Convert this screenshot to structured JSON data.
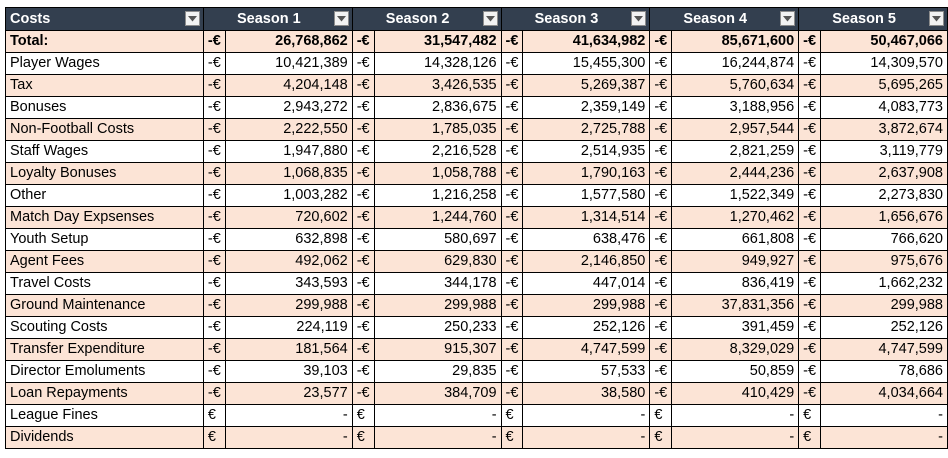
{
  "sheet": {
    "header": {
      "label": "Costs",
      "seasons": [
        "Season 1",
        "Season 2",
        "Season 3",
        "Season 4",
        "Season 5"
      ],
      "filter_icon": "dropdown-arrow-icon"
    },
    "rows": [
      {
        "label": "Total:",
        "cells": [
          [
            "-€",
            "26,768,862"
          ],
          [
            "-€",
            "31,547,482"
          ],
          [
            "-€",
            "41,634,982"
          ],
          [
            "-€",
            "85,671,600"
          ],
          [
            "-€",
            "50,467,066"
          ]
        ]
      },
      {
        "label": "Player Wages",
        "cells": [
          [
            "-€",
            "10,421,389"
          ],
          [
            "-€",
            "14,328,126"
          ],
          [
            "-€",
            "15,455,300"
          ],
          [
            "-€",
            "16,244,874"
          ],
          [
            "-€",
            "14,309,570"
          ]
        ]
      },
      {
        "label": "Tax",
        "cells": [
          [
            "-€",
            "4,204,148"
          ],
          [
            "-€",
            "3,426,535"
          ],
          [
            "-€",
            "5,269,387"
          ],
          [
            "-€",
            "5,760,634"
          ],
          [
            "-€",
            "5,695,265"
          ]
        ]
      },
      {
        "label": "Bonuses",
        "cells": [
          [
            "-€",
            "2,943,272"
          ],
          [
            "-€",
            "2,836,675"
          ],
          [
            "-€",
            "2,359,149"
          ],
          [
            "-€",
            "3,188,956"
          ],
          [
            "-€",
            "4,083,773"
          ]
        ]
      },
      {
        "label": "Non-Football Costs",
        "cells": [
          [
            "-€",
            "2,222,550"
          ],
          [
            "-€",
            "1,785,035"
          ],
          [
            "-€",
            "2,725,788"
          ],
          [
            "-€",
            "2,957,544"
          ],
          [
            "-€",
            "3,872,674"
          ]
        ]
      },
      {
        "label": "Staff Wages",
        "cells": [
          [
            "-€",
            "1,947,880"
          ],
          [
            "-€",
            "2,216,528"
          ],
          [
            "-€",
            "2,514,935"
          ],
          [
            "-€",
            "2,821,259"
          ],
          [
            "-€",
            "3,119,779"
          ]
        ]
      },
      {
        "label": "Loyalty Bonuses",
        "cells": [
          [
            "-€",
            "1,068,835"
          ],
          [
            "-€",
            "1,058,788"
          ],
          [
            "-€",
            "1,790,163"
          ],
          [
            "-€",
            "2,444,236"
          ],
          [
            "-€",
            "2,637,908"
          ]
        ]
      },
      {
        "label": "Other",
        "cells": [
          [
            "-€",
            "1,003,282"
          ],
          [
            "-€",
            "1,216,258"
          ],
          [
            "-€",
            "1,577,580"
          ],
          [
            "-€",
            "1,522,349"
          ],
          [
            "-€",
            "2,273,830"
          ]
        ]
      },
      {
        "label": "Match Day Expsenses",
        "cells": [
          [
            "-€",
            "720,602"
          ],
          [
            "-€",
            "1,244,760"
          ],
          [
            "-€",
            "1,314,514"
          ],
          [
            "-€",
            "1,270,462"
          ],
          [
            "-€",
            "1,656,676"
          ]
        ]
      },
      {
        "label": "Youth Setup",
        "cells": [
          [
            "-€",
            "632,898"
          ],
          [
            "-€",
            "580,697"
          ],
          [
            "-€",
            "638,476"
          ],
          [
            "-€",
            "661,808"
          ],
          [
            "-€",
            "766,620"
          ]
        ]
      },
      {
        "label": "Agent Fees",
        "cells": [
          [
            "-€",
            "492,062"
          ],
          [
            "-€",
            "629,830"
          ],
          [
            "-€",
            "2,146,850"
          ],
          [
            "-€",
            "949,927"
          ],
          [
            "-€",
            "975,676"
          ]
        ]
      },
      {
        "label": "Travel Costs",
        "cells": [
          [
            "-€",
            "343,593"
          ],
          [
            "-€",
            "344,178"
          ],
          [
            "-€",
            "447,014"
          ],
          [
            "-€",
            "836,419"
          ],
          [
            "-€",
            "1,662,232"
          ]
        ]
      },
      {
        "label": "Ground Maintenance",
        "cells": [
          [
            "-€",
            "299,988"
          ],
          [
            "-€",
            "299,988"
          ],
          [
            "-€",
            "299,988"
          ],
          [
            "-€",
            "37,831,356"
          ],
          [
            "-€",
            "299,988"
          ]
        ]
      },
      {
        "label": "Scouting Costs",
        "cells": [
          [
            "-€",
            "224,119"
          ],
          [
            "-€",
            "250,233"
          ],
          [
            "-€",
            "252,126"
          ],
          [
            "-€",
            "391,459"
          ],
          [
            "-€",
            "252,126"
          ]
        ]
      },
      {
        "label": "Transfer Expenditure",
        "cells": [
          [
            "-€",
            "181,564"
          ],
          [
            "-€",
            "915,307"
          ],
          [
            "-€",
            "4,747,599"
          ],
          [
            "-€",
            "8,329,029"
          ],
          [
            "-€",
            "4,747,599"
          ]
        ]
      },
      {
        "label": "Director Emoluments",
        "cells": [
          [
            "-€",
            "39,103"
          ],
          [
            "-€",
            "29,835"
          ],
          [
            "-€",
            "57,533"
          ],
          [
            "-€",
            "50,859"
          ],
          [
            "-€",
            "78,686"
          ]
        ]
      },
      {
        "label": "Loan Repayments",
        "cells": [
          [
            "-€",
            "23,577"
          ],
          [
            "-€",
            "384,709"
          ],
          [
            "-€",
            "38,580"
          ],
          [
            "-€",
            "410,429"
          ],
          [
            "-€",
            "4,034,664"
          ]
        ]
      },
      {
        "label": "League Fines",
        "cells": [
          [
            "€",
            "-"
          ],
          [
            "€",
            "-"
          ],
          [
            "€",
            "-"
          ],
          [
            "€",
            "-"
          ],
          [
            "€",
            "-"
          ]
        ]
      },
      {
        "label": "Dividends",
        "cells": [
          [
            "€",
            "-"
          ],
          [
            "€",
            "-"
          ],
          [
            "€",
            "-"
          ],
          [
            "€",
            "-"
          ],
          [
            "€",
            "-"
          ]
        ]
      }
    ]
  }
}
